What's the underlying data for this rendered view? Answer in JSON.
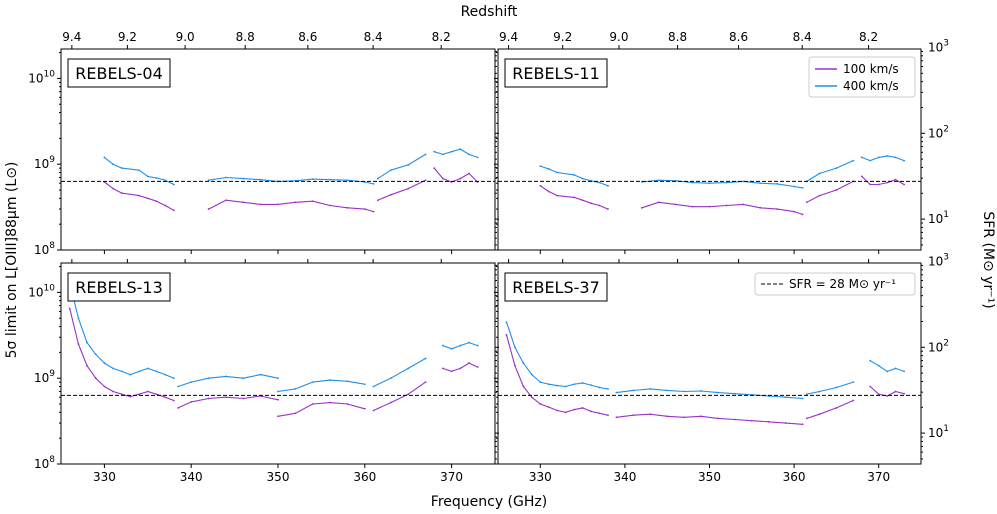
{
  "chart_data": {
    "type": "line",
    "xlabel": "Frequency (GHz)",
    "top_axis_label": "Redshift",
    "ylabel_left": "5σ limit on L[OIII]88μm (L⊙)",
    "ylabel_right": "SFR (M⊙ yr⁻¹)",
    "xlim": [
      325,
      375
    ],
    "ylim": [
      100000000.0,
      22000000000.0
    ],
    "x_ticks": [
      "330",
      "340",
      "350",
      "360",
      "370"
    ],
    "y_ticks": [
      "10^8",
      "10^9",
      "10^10"
    ],
    "sfr_ticks": [
      "10^1",
      "10^2",
      "10^3"
    ],
    "redshift_ticks": [
      "9.4",
      "9.2",
      "9.0",
      "8.8",
      "8.6",
      "8.4",
      "8.2"
    ],
    "reference_line": {
      "label": "SFR = 28 M⊙ yr⁻¹",
      "value": 630000000.0
    },
    "legend": [
      {
        "name": "100 km/s",
        "color": "#9b30c8"
      },
      {
        "name": "400 km/s",
        "color": "#1f8fe8"
      }
    ],
    "panels": [
      {
        "title": "REBELS-04",
        "segments": [
          {
            "x": [
              330,
              331,
              332,
              334,
              335,
              336,
              337,
              338
            ],
            "s400": [
              1200000000.0,
              1000000000.0,
              900000000.0,
              850000000.0,
              720000000.0,
              690000000.0,
              650000000.0,
              580000000.0
            ],
            "s100": [
              620000000.0,
              520000000.0,
              460000000.0,
              430000000.0,
              400000000.0,
              370000000.0,
              330000000.0,
              290000000.0
            ]
          },
          {
            "x": [
              342,
              344,
              346,
              348,
              350,
              352,
              354,
              356,
              358,
              360,
              361
            ],
            "s400": [
              650000000.0,
              700000000.0,
              680000000.0,
              660000000.0,
              630000000.0,
              640000000.0,
              670000000.0,
              660000000.0,
              650000000.0,
              620000000.0,
              590000000.0
            ],
            "s100": [
              300000000.0,
              380000000.0,
              360000000.0,
              340000000.0,
              340000000.0,
              360000000.0,
              370000000.0,
              330000000.0,
              310000000.0,
              300000000.0,
              280000000.0
            ]
          },
          {
            "x": [
              361.5,
              363,
              365,
              367
            ],
            "s400": [
              680000000.0,
              850000000.0,
              980000000.0,
              1300000000.0
            ],
            "s100": [
              380000000.0,
              440000000.0,
              520000000.0,
              650000000.0
            ]
          },
          {
            "x": [
              368,
              369,
              370,
              371,
              372,
              373
            ],
            "s400": [
              1400000000.0,
              1300000000.0,
              1400000000.0,
              1500000000.0,
              1300000000.0,
              1200000000.0
            ],
            "s100": [
              900000000.0,
              680000000.0,
              620000000.0,
              680000000.0,
              780000000.0,
              620000000.0
            ]
          }
        ]
      },
      {
        "title": "REBELS-11",
        "segments": [
          {
            "x": [
              330,
              331,
              332,
              334,
              335,
              336,
              337,
              338
            ],
            "s400": [
              950000000.0,
              880000000.0,
              800000000.0,
              750000000.0,
              680000000.0,
              640000000.0,
              610000000.0,
              560000000.0
            ],
            "s100": [
              560000000.0,
              480000000.0,
              430000000.0,
              410000000.0,
              380000000.0,
              350000000.0,
              330000000.0,
              300000000.0
            ]
          },
          {
            "x": [
              342,
              344,
              346,
              348,
              350,
              352,
              354,
              356,
              358,
              360,
              361
            ],
            "s400": [
              620000000.0,
              650000000.0,
              640000000.0,
              610000000.0,
              600000000.0,
              610000000.0,
              630000000.0,
              600000000.0,
              590000000.0,
              550000000.0,
              530000000.0
            ],
            "s100": [
              310000000.0,
              360000000.0,
              340000000.0,
              320000000.0,
              320000000.0,
              330000000.0,
              340000000.0,
              310000000.0,
              300000000.0,
              280000000.0,
              260000000.0
            ]
          },
          {
            "x": [
              361.5,
              363,
              365,
              367
            ],
            "s400": [
              630000000.0,
              780000000.0,
              900000000.0,
              1100000000.0
            ],
            "s100": [
              360000000.0,
              430000000.0,
              500000000.0,
              630000000.0
            ]
          },
          {
            "x": [
              368,
              369,
              370,
              371,
              372,
              373
            ],
            "s400": [
              1200000000.0,
              1100000000.0,
              1200000000.0,
              1250000000.0,
              1200000000.0,
              1100000000.0
            ],
            "s100": [
              720000000.0,
              580000000.0,
              580000000.0,
              610000000.0,
              660000000.0,
              580000000.0
            ]
          }
        ]
      },
      {
        "title": "REBELS-13",
        "segments": [
          {
            "x": [
              326,
              327,
              328,
              329,
              330,
              331,
              332,
              333,
              334,
              335,
              336,
              337,
              338
            ],
            "s400": [
              13000000000.0,
              5000000000.0,
              2600000000.0,
              1900000000.0,
              1500000000.0,
              1300000000.0,
              1200000000.0,
              1100000000.0,
              1200000000.0,
              1300000000.0,
              1200000000.0,
              1100000000.0,
              1000000000.0
            ],
            "s100": [
              6500000000.0,
              2500000000.0,
              1400000000.0,
              1000000000.0,
              800000000.0,
              700000000.0,
              650000000.0,
              610000000.0,
              650000000.0,
              700000000.0,
              650000000.0,
              600000000.0,
              550000000.0
            ]
          },
          {
            "x": [
              338.5,
              340,
              342,
              344,
              346,
              348,
              350
            ],
            "s400": [
              800000000.0,
              900000000.0,
              1000000000.0,
              1050000000.0,
              1000000000.0,
              1100000000.0,
              1000000000.0
            ],
            "s100": [
              450000000.0,
              530000000.0,
              580000000.0,
              600000000.0,
              580000000.0,
              620000000.0,
              560000000.0
            ]
          },
          {
            "x": [
              350,
              352,
              354,
              356,
              358,
              360
            ],
            "s400": [
              700000000.0,
              750000000.0,
              900000000.0,
              950000000.0,
              920000000.0,
              850000000.0
            ],
            "s100": [
              360000000.0,
              390000000.0,
              500000000.0,
              520000000.0,
              500000000.0,
              440000000.0
            ]
          },
          {
            "x": [
              361,
              363,
              365,
              367
            ],
            "s400": [
              800000000.0,
              1000000000.0,
              1300000000.0,
              1700000000.0
            ],
            "s100": [
              420000000.0,
              520000000.0,
              650000000.0,
              900000000.0
            ]
          },
          {
            "x": [
              369,
              370,
              371,
              372,
              373
            ],
            "s400": [
              2400000000.0,
              2200000000.0,
              2400000000.0,
              2600000000.0,
              2400000000.0
            ],
            "s100": [
              1300000000.0,
              1200000000.0,
              1300000000.0,
              1500000000.0,
              1350000000.0
            ]
          }
        ]
      },
      {
        "title": "REBELS-37",
        "segments": [
          {
            "x": [
              326,
              327,
              328,
              329,
              330,
              331,
              332,
              333,
              334,
              335,
              336,
              337,
              338
            ],
            "s400": [
              4500000000.0,
              2300000000.0,
              1500000000.0,
              1100000000.0,
              900000000.0,
              850000000.0,
              820000000.0,
              800000000.0,
              850000000.0,
              880000000.0,
              830000000.0,
              780000000.0,
              750000000.0
            ],
            "s100": [
              3200000000.0,
              1400000000.0,
              800000000.0,
              600000000.0,
              500000000.0,
              460000000.0,
              420000000.0,
              400000000.0,
              430000000.0,
              450000000.0,
              410000000.0,
              390000000.0,
              370000000.0
            ]
          },
          {
            "x": [
              339,
              341,
              343,
              345,
              347,
              349,
              351,
              353,
              355,
              357,
              359,
              361
            ],
            "s400": [
              680000000.0,
              720000000.0,
              750000000.0,
              720000000.0,
              700000000.0,
              710000000.0,
              680000000.0,
              660000000.0,
              640000000.0,
              620000000.0,
              600000000.0,
              580000000.0
            ],
            "s100": [
              350000000.0,
              370000000.0,
              380000000.0,
              360000000.0,
              350000000.0,
              360000000.0,
              340000000.0,
              330000000.0,
              320000000.0,
              310000000.0,
              300000000.0,
              290000000.0
            ]
          },
          {
            "x": [
              361.5,
              363,
              365,
              367
            ],
            "s400": [
              650000000.0,
              700000000.0,
              780000000.0,
              900000000.0
            ],
            "s100": [
              340000000.0,
              380000000.0,
              450000000.0,
              550000000.0
            ]
          },
          {
            "x": [
              369,
              370,
              371,
              372,
              373
            ],
            "s400": [
              1600000000.0,
              1400000000.0,
              1200000000.0,
              1300000000.0,
              1200000000.0
            ],
            "s100": [
              800000000.0,
              650000000.0,
              620000000.0,
              700000000.0,
              660000000.0
            ]
          }
        ]
      }
    ]
  }
}
